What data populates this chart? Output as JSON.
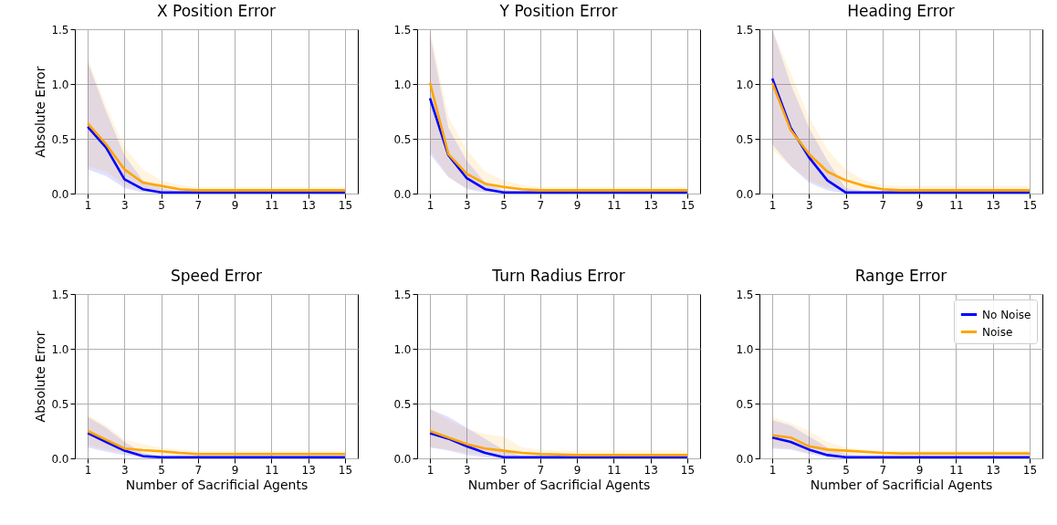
{
  "chart_data": [
    {
      "type": "line",
      "title": "X Position Error",
      "ylabel": "Absolute Error",
      "x": [
        1,
        2,
        3,
        4,
        5,
        6,
        7,
        8,
        9,
        10,
        11,
        12,
        13,
        14,
        15
      ],
      "xlim": [
        0.3,
        15.7
      ],
      "xticks": [
        1,
        3,
        5,
        7,
        9,
        11,
        13,
        15
      ],
      "ylim": [
        0,
        1.5
      ],
      "yticks": [
        {
          "value": 0,
          "label": "0.0"
        },
        {
          "value": 0.5,
          "label": "0.5"
        },
        {
          "value": 1,
          "label": "1.0"
        },
        {
          "value": 1.5,
          "label": "1.5"
        }
      ],
      "grid": true,
      "series": [
        {
          "color": "#0000ff",
          "values": [
            0.61,
            0.42,
            0.13,
            0.04,
            0.01,
            0.01,
            0.01,
            0.01,
            0.01,
            0.01,
            0.01,
            0.01,
            0.01,
            0.01,
            0.01
          ],
          "lower": [
            0.22,
            0.16,
            0.05,
            0.01,
            0,
            0,
            0,
            0,
            0,
            0,
            0,
            0,
            0,
            0,
            0
          ],
          "upper": [
            1.2,
            0.75,
            0.35,
            0.12,
            0.05,
            0.02,
            0.02,
            0.02,
            0.02,
            0.02,
            0.02,
            0.02,
            0.02,
            0.02,
            0.02
          ]
        },
        {
          "color": "#ffa500",
          "values": [
            0.64,
            0.45,
            0.22,
            0.1,
            0.07,
            0.04,
            0.03,
            0.03,
            0.03,
            0.03,
            0.03,
            0.03,
            0.03,
            0.03,
            0.03
          ],
          "lower": [
            0.25,
            0.2,
            0.08,
            0.02,
            0.02,
            0.01,
            0.01,
            0.01,
            0.01,
            0.01,
            0.01,
            0.01,
            0.01,
            0.01,
            0.01
          ],
          "upper": [
            1.23,
            0.8,
            0.42,
            0.22,
            0.12,
            0.08,
            0.06,
            0.06,
            0.06,
            0.06,
            0.06,
            0.06,
            0.06,
            0.06,
            0.06
          ]
        }
      ]
    },
    {
      "type": "line",
      "title": "Y Position Error",
      "x": [
        1,
        2,
        3,
        4,
        5,
        6,
        7,
        8,
        9,
        10,
        11,
        12,
        13,
        14,
        15
      ],
      "xlim": [
        0.3,
        15.7
      ],
      "xticks": [
        1,
        3,
        5,
        7,
        9,
        11,
        13,
        15
      ],
      "ylim": [
        0,
        1.5
      ],
      "yticks": [
        {
          "value": 0,
          "label": "0.0"
        },
        {
          "value": 0.5,
          "label": "0.5"
        },
        {
          "value": 1,
          "label": "1.0"
        },
        {
          "value": 1.5,
          "label": "1.5"
        }
      ],
      "grid": true,
      "series": [
        {
          "color": "#0000ff",
          "values": [
            0.87,
            0.35,
            0.14,
            0.04,
            0.01,
            0.01,
            0.01,
            0.01,
            0.01,
            0.01,
            0.01,
            0.01,
            0.01,
            0.01,
            0.01
          ],
          "lower": [
            0.36,
            0.15,
            0.04,
            0.01,
            0,
            0,
            0,
            0,
            0,
            0,
            0,
            0,
            0,
            0,
            0
          ],
          "upper": [
            1.45,
            0.6,
            0.3,
            0.1,
            0.03,
            0.02,
            0.02,
            0.02,
            0.02,
            0.02,
            0.02,
            0.02,
            0.02,
            0.02,
            0.02
          ]
        },
        {
          "color": "#ffa500",
          "values": [
            1.01,
            0.36,
            0.18,
            0.09,
            0.06,
            0.04,
            0.03,
            0.03,
            0.03,
            0.03,
            0.03,
            0.03,
            0.03,
            0.03,
            0.03
          ],
          "lower": [
            0.4,
            0.15,
            0.05,
            0.02,
            0.01,
            0.01,
            0.01,
            0.01,
            0.01,
            0.01,
            0.01,
            0.01,
            0.01,
            0.01,
            0.01
          ],
          "upper": [
            1.5,
            0.7,
            0.4,
            0.2,
            0.12,
            0.08,
            0.06,
            0.06,
            0.06,
            0.06,
            0.06,
            0.06,
            0.06,
            0.06,
            0.06
          ]
        }
      ]
    },
    {
      "type": "line",
      "title": "Heading Error",
      "x": [
        1,
        2,
        3,
        4,
        5,
        6,
        7,
        8,
        9,
        10,
        11,
        12,
        13,
        14,
        15
      ],
      "xlim": [
        0.3,
        15.7
      ],
      "xticks": [
        1,
        3,
        5,
        7,
        9,
        11,
        13,
        15
      ],
      "ylim": [
        0,
        1.5
      ],
      "yticks": [
        {
          "value": 0,
          "label": "0.0"
        },
        {
          "value": 0.5,
          "label": "0.5"
        },
        {
          "value": 1,
          "label": "1.0"
        },
        {
          "value": 1.5,
          "label": "1.5"
        }
      ],
      "grid": true,
      "series": [
        {
          "color": "#0000ff",
          "values": [
            1.05,
            0.6,
            0.33,
            0.12,
            0.01,
            0.01,
            0.01,
            0.01,
            0.01,
            0.01,
            0.01,
            0.01,
            0.01,
            0.01,
            0.01
          ],
          "lower": [
            0.45,
            0.25,
            0.1,
            0.03,
            0,
            0,
            0,
            0,
            0,
            0,
            0,
            0,
            0,
            0,
            0
          ],
          "upper": [
            1.5,
            1,
            0.6,
            0.3,
            0.05,
            0.02,
            0.02,
            0.02,
            0.02,
            0.02,
            0.02,
            0.02,
            0.02,
            0.02,
            0.02
          ]
        },
        {
          "color": "#ffa500",
          "values": [
            1.01,
            0.58,
            0.36,
            0.2,
            0.12,
            0.07,
            0.04,
            0.03,
            0.03,
            0.03,
            0.03,
            0.03,
            0.03,
            0.03,
            0.03
          ],
          "lower": [
            0.4,
            0.25,
            0.12,
            0.05,
            0.03,
            0.02,
            0.01,
            0.01,
            0.01,
            0.01,
            0.01,
            0.01,
            0.01,
            0.01,
            0.01
          ],
          "upper": [
            1.5,
            1.1,
            0.7,
            0.4,
            0.22,
            0.12,
            0.08,
            0.07,
            0.07,
            0.07,
            0.07,
            0.07,
            0.07,
            0.07,
            0.07
          ]
        }
      ]
    },
    {
      "type": "line",
      "title": "Speed Error",
      "xlabel": "Number of Sacrificial Agents",
      "ylabel": "Absolute Error",
      "x": [
        1,
        2,
        3,
        4,
        5,
        6,
        7,
        8,
        9,
        10,
        11,
        12,
        13,
        14,
        15
      ],
      "xlim": [
        0.3,
        15.7
      ],
      "xticks": [
        1,
        3,
        5,
        7,
        9,
        11,
        13,
        15
      ],
      "ylim": [
        0,
        1.5
      ],
      "yticks": [
        {
          "value": 0,
          "label": "0.0"
        },
        {
          "value": 0.5,
          "label": "0.5"
        },
        {
          "value": 1,
          "label": "1.0"
        },
        {
          "value": 1.5,
          "label": "1.5"
        }
      ],
      "grid": true,
      "series": [
        {
          "color": "#0000ff",
          "values": [
            0.23,
            0.15,
            0.07,
            0.02,
            0.01,
            0.01,
            0.01,
            0.01,
            0.01,
            0.01,
            0.01,
            0.01,
            0.01,
            0.01,
            0.01
          ],
          "lower": [
            0.1,
            0.06,
            0.03,
            0.01,
            0,
            0,
            0,
            0,
            0,
            0,
            0,
            0,
            0,
            0,
            0
          ],
          "upper": [
            0.38,
            0.28,
            0.15,
            0.05,
            0.02,
            0.02,
            0.02,
            0.02,
            0.02,
            0.02,
            0.02,
            0.02,
            0.02,
            0.02,
            0.02
          ]
        },
        {
          "color": "#ffa500",
          "values": [
            0.25,
            0.17,
            0.09,
            0.075,
            0.065,
            0.05,
            0.04,
            0.04,
            0.04,
            0.04,
            0.04,
            0.04,
            0.04,
            0.04,
            0.04
          ],
          "lower": [
            0.12,
            0.08,
            0.05,
            0.03,
            0.03,
            0.02,
            0.02,
            0.02,
            0.02,
            0.02,
            0.02,
            0.02,
            0.02,
            0.02,
            0.02
          ],
          "upper": [
            0.4,
            0.3,
            0.17,
            0.13,
            0.1,
            0.08,
            0.07,
            0.07,
            0.07,
            0.07,
            0.07,
            0.07,
            0.07,
            0.07,
            0.07
          ]
        }
      ]
    },
    {
      "type": "line",
      "title": "Turn Radius Error",
      "xlabel": "Number of Sacrificial Agents",
      "x": [
        1,
        2,
        3,
        4,
        5,
        6,
        7,
        8,
        9,
        10,
        11,
        12,
        13,
        14,
        15
      ],
      "xlim": [
        0.3,
        15.7
      ],
      "xticks": [
        1,
        3,
        5,
        7,
        9,
        11,
        13,
        15
      ],
      "ylim": [
        0,
        1.5
      ],
      "yticks": [
        {
          "value": 0,
          "label": "0.0"
        },
        {
          "value": 0.5,
          "label": "0.5"
        },
        {
          "value": 1,
          "label": "1.0"
        },
        {
          "value": 1.5,
          "label": "1.5"
        }
      ],
      "grid": true,
      "series": [
        {
          "color": "#0000ff",
          "values": [
            0.23,
            0.18,
            0.11,
            0.05,
            0.01,
            0.01,
            0.01,
            0.01,
            0.01,
            0.01,
            0.01,
            0.01,
            0.01,
            0.01,
            0.01
          ],
          "lower": [
            0.1,
            0.07,
            0.03,
            0.01,
            0,
            0,
            0,
            0,
            0,
            0,
            0,
            0,
            0,
            0,
            0
          ],
          "upper": [
            0.45,
            0.38,
            0.28,
            0.18,
            0.08,
            0.02,
            0.02,
            0.02,
            0.02,
            0.02,
            0.02,
            0.02,
            0.02,
            0.02,
            0.02
          ]
        },
        {
          "color": "#ffa500",
          "values": [
            0.25,
            0.19,
            0.13,
            0.09,
            0.07,
            0.05,
            0.04,
            0.035,
            0.03,
            0.03,
            0.03,
            0.03,
            0.03,
            0.03,
            0.03
          ],
          "lower": [
            0.1,
            0.08,
            0.05,
            0.03,
            0.02,
            0.02,
            0.01,
            0.01,
            0.01,
            0.01,
            0.01,
            0.01,
            0.01,
            0.01,
            0.01
          ],
          "upper": [
            0.45,
            0.35,
            0.27,
            0.22,
            0.2,
            0.1,
            0.08,
            0.07,
            0.07,
            0.07,
            0.07,
            0.07,
            0.07,
            0.07,
            0.07
          ]
        }
      ]
    },
    {
      "type": "line",
      "title": "Range Error",
      "xlabel": "Number of Sacrificial Agents",
      "x": [
        1,
        2,
        3,
        4,
        5,
        6,
        7,
        8,
        9,
        10,
        11,
        12,
        13,
        14,
        15
      ],
      "xlim": [
        0.3,
        15.7
      ],
      "xticks": [
        1,
        3,
        5,
        7,
        9,
        11,
        13,
        15
      ],
      "ylim": [
        0,
        1.5
      ],
      "yticks": [
        {
          "value": 0,
          "label": "0.0"
        },
        {
          "value": 0.5,
          "label": "0.5"
        },
        {
          "value": 1,
          "label": "1.0"
        },
        {
          "value": 1.5,
          "label": "1.5"
        }
      ],
      "grid": true,
      "legend": "top right",
      "series": [
        {
          "name": "No Noise",
          "color": "#0000ff",
          "values": [
            0.19,
            0.15,
            0.08,
            0.03,
            0.01,
            0.01,
            0.01,
            0.01,
            0.01,
            0.01,
            0.01,
            0.01,
            0.01,
            0.01,
            0.01
          ],
          "lower": [
            0.09,
            0.08,
            0.04,
            0.01,
            0,
            0,
            0,
            0,
            0,
            0,
            0,
            0,
            0,
            0,
            0
          ],
          "upper": [
            0.35,
            0.3,
            0.2,
            0.1,
            0.04,
            0.02,
            0.02,
            0.02,
            0.02,
            0.02,
            0.02,
            0.02,
            0.02,
            0.02,
            0.02
          ]
        },
        {
          "name": "Noise",
          "color": "#ffa500",
          "values": [
            0.21,
            0.19,
            0.11,
            0.08,
            0.07,
            0.06,
            0.05,
            0.045,
            0.045,
            0.045,
            0.045,
            0.045,
            0.045,
            0.045,
            0.045
          ],
          "lower": [
            0.1,
            0.09,
            0.05,
            0.03,
            0.03,
            0.02,
            0.02,
            0.02,
            0.02,
            0.02,
            0.02,
            0.02,
            0.02,
            0.02,
            0.02
          ],
          "upper": [
            0.38,
            0.32,
            0.25,
            0.15,
            0.1,
            0.08,
            0.07,
            0.07,
            0.07,
            0.07,
            0.07,
            0.07,
            0.07,
            0.07,
            0.07
          ]
        }
      ]
    }
  ]
}
